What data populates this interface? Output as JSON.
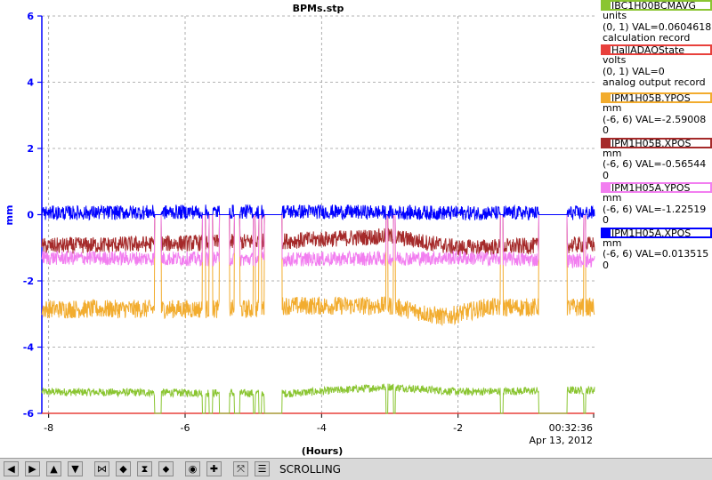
{
  "chart_data": {
    "type": "line",
    "title": "BPMs.stp",
    "xlabel": "(Hours)",
    "ylabel": "mm",
    "xlim": [
      -8.1,
      0.0
    ],
    "ylim": [
      -6,
      6
    ],
    "x_ticks": [
      "-8",
      "-6",
      "-4",
      "-2"
    ],
    "y_ticks": [
      "6",
      "4",
      "2",
      "0",
      "-2",
      "-4",
      "-6"
    ],
    "time_label": "00:32:36",
    "date_label": "Apr 13, 2012",
    "grid": true,
    "series": [
      {
        "name": "IBC1H00BCMAVG",
        "color": "#8ac531",
        "base": -5.35,
        "noise": 0.12,
        "trend": [
          [
            -8.1,
            -5.35
          ],
          [
            -4.5,
            -5.4
          ],
          [
            -3.0,
            -5.2
          ],
          [
            -2.0,
            -5.35
          ],
          [
            0,
            -5.3
          ]
        ]
      },
      {
        "name": "HallADAQState",
        "color": "#e8403c",
        "base": -6.0,
        "noise": 0.0,
        "trend": [
          [
            -8.1,
            -6.0
          ],
          [
            0,
            -6.0
          ]
        ]
      },
      {
        "name": "IPM1H05B.YPOS",
        "color": "#f2ac2e",
        "base": -2.85,
        "noise": 0.28,
        "trend": [
          [
            -8.1,
            -2.85
          ],
          [
            -5.0,
            -2.85
          ],
          [
            -4.6,
            -2.75
          ],
          [
            -3.0,
            -2.75
          ],
          [
            -2.2,
            -3.1
          ],
          [
            -1.6,
            -2.8
          ],
          [
            -1.0,
            -2.8
          ],
          [
            0,
            -2.8
          ]
        ]
      },
      {
        "name": "IPM1H05B.XPOS",
        "color": "#a52a2a",
        "base": -0.95,
        "noise": 0.25,
        "trend": [
          [
            -8.1,
            -0.95
          ],
          [
            -4.6,
            -0.8
          ],
          [
            -3.0,
            -0.65
          ],
          [
            -2.0,
            -1.0
          ],
          [
            0,
            -0.9
          ]
        ]
      },
      {
        "name": "IPM1H05A.YPOS",
        "color": "#f27ef0",
        "base": -1.35,
        "noise": 0.22,
        "trend": [
          [
            -8.1,
            -1.3
          ],
          [
            -4.6,
            -1.35
          ],
          [
            -2.0,
            -1.3
          ],
          [
            0,
            -1.4
          ]
        ]
      },
      {
        "name": "IPM1H05A.XPOS",
        "color": "#0000ff",
        "base": 0.05,
        "noise": 0.22,
        "trend": [
          [
            -8.1,
            0.05
          ],
          [
            -4.6,
            0.1
          ],
          [
            -2.0,
            0.05
          ],
          [
            0,
            0.05
          ]
        ]
      }
    ],
    "beam_off_intervals": [
      [
        -6.45,
        -6.35
      ],
      [
        -5.75,
        -5.7
      ],
      [
        -5.65,
        -5.6
      ],
      [
        -5.5,
        -5.35
      ],
      [
        -5.28,
        -5.2
      ],
      [
        -5.0,
        -4.97
      ],
      [
        -4.92,
        -4.88
      ],
      [
        -4.84,
        -4.58
      ],
      [
        -3.06,
        -3.03
      ],
      [
        -2.95,
        -2.92
      ],
      [
        -1.38,
        -1.34
      ],
      [
        -0.82,
        -0.4
      ],
      [
        -0.16,
        -0.13
      ]
    ]
  },
  "legend": [
    {
      "name": "IBC1H00BCMAVG",
      "color": "#8ac531",
      "line1": "units",
      "line2": "(0, 1) VAL=0.0604618",
      "line3": "calculation record"
    },
    {
      "name": "HallADAQState",
      "color": "#e8403c",
      "line1": "volts",
      "line2": "(0, 1) VAL=0",
      "line3": "analog output record"
    },
    {
      "name": "IPM1H05B.YPOS",
      "color": "#f2ac2e",
      "line1": "mm",
      "line2": "(-6, 6) VAL=-2.59008",
      "line3": "0"
    },
    {
      "name": "IPM1H05B.XPOS",
      "color": "#a52a2a",
      "line1": "mm",
      "line2": "(-6, 6) VAL=-0.56544",
      "line3": "0"
    },
    {
      "name": "IPM1H05A.YPOS",
      "color": "#f27ef0",
      "line1": "mm",
      "line2": "(-6, 6) VAL=-1.22519",
      "line3": "0"
    },
    {
      "name": "IPM1H05A.XPOS",
      "color": "#0000ff",
      "line1": "mm",
      "line2": "(-6, 6) VAL=0.013515",
      "line3": "0"
    }
  ],
  "toolbar": {
    "mode_label": "SCROLLING",
    "buttons": [
      {
        "name": "arrow-left-icon",
        "glyph": "◀"
      },
      {
        "name": "arrow-right-icon",
        "glyph": "▶"
      },
      {
        "name": "arrow-up-icon",
        "glyph": "▲"
      },
      {
        "name": "arrow-down-icon",
        "glyph": "▼"
      },
      {
        "name": "zoom-in-horizontal-icon",
        "glyph": "⋈"
      },
      {
        "name": "zoom-out-horizontal-icon",
        "glyph": "◆"
      },
      {
        "name": "zoom-in-vertical-icon",
        "glyph": "⧗"
      },
      {
        "name": "zoom-out-vertical-icon",
        "glyph": "⬥"
      },
      {
        "name": "autoscale-icon",
        "glyph": "◉"
      },
      {
        "name": "add-icon",
        "glyph": "✚"
      },
      {
        "name": "fit-icon",
        "glyph": "⤧"
      },
      {
        "name": "stack-icon",
        "glyph": "☰"
      }
    ]
  }
}
